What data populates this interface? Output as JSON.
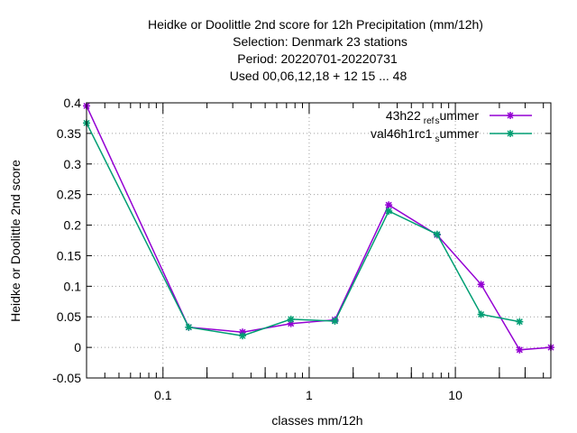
{
  "chart_data": {
    "type": "line",
    "title_lines": [
      "Heidke or Doolittle 2nd score  for 12h Precipitation (mm/12h)",
      "Selection: Denmark     23 stations",
      "Period: 20220701-20220731",
      "Used  00,06,12,18  + 12 15 ... 48"
    ],
    "xlabel": "classes mm/12h",
    "ylabel": "Heidke or Doolittle 2nd score",
    "xscale": "log",
    "xlim": [
      0.03,
      45
    ],
    "ylim": [
      -0.05,
      0.4
    ],
    "grid": true,
    "legend_position": "top-right",
    "x_tick_labels": [
      {
        "value": 0.1,
        "label": "0.1"
      },
      {
        "value": 1,
        "label": "1"
      },
      {
        "value": 10,
        "label": "10"
      }
    ],
    "y_tick_labels": [
      {
        "value": 0.4,
        "label": "0.4"
      },
      {
        "value": 0.35,
        "label": "0.35"
      },
      {
        "value": 0.3,
        "label": "0.3"
      },
      {
        "value": 0.25,
        "label": "0.25"
      },
      {
        "value": 0.2,
        "label": "0.2"
      },
      {
        "value": 0.15,
        "label": "0.15"
      },
      {
        "value": 0.1,
        "label": "0.1"
      },
      {
        "value": 0.05,
        "label": "0.05"
      },
      {
        "value": 0,
        "label": "0"
      },
      {
        "value": -0.05,
        "label": "-0.05"
      }
    ],
    "x_minor_ticks": [
      0.03,
      0.04,
      0.05,
      0.06,
      0.07,
      0.08,
      0.09,
      0.2,
      0.3,
      0.4,
      0.5,
      0.6,
      0.7,
      0.8,
      0.9,
      2,
      3,
      4,
      5,
      6,
      7,
      8,
      9,
      20,
      30,
      40
    ],
    "x_major_ticks": [
      0.1,
      1,
      10
    ],
    "series": [
      {
        "name_main": "43h22",
        "name_sub": "ref",
        "name_sub2": "s",
        "name_tail": "ummer",
        "color": "#9400d3",
        "x": [
          0.03,
          0.15,
          0.35,
          0.75,
          1.5,
          3.5,
          7.5,
          15,
          27.5,
          45
        ],
        "y": [
          0.395,
          0.033,
          0.025,
          0.039,
          0.045,
          0.233,
          0.184,
          0.103,
          -0.004,
          0.0
        ]
      },
      {
        "name_main": "val46h1rc1",
        "name_sub": "",
        "name_sub2": "s",
        "name_tail": "ummer",
        "color": "#009e73",
        "x": [
          0.03,
          0.15,
          0.35,
          0.75,
          1.5,
          3.5,
          7.5,
          15,
          27.5
        ],
        "y": [
          0.367,
          0.033,
          0.019,
          0.046,
          0.043,
          0.223,
          0.185,
          0.054,
          0.042
        ]
      }
    ]
  }
}
